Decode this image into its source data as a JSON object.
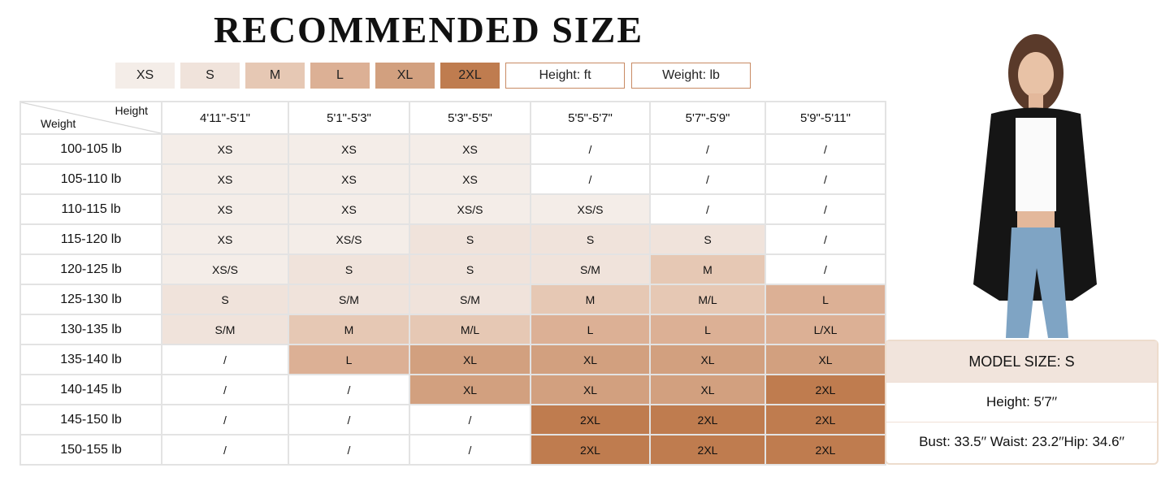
{
  "title": "RECOMMENDED SIZE",
  "legend": [
    {
      "label": "XS",
      "color": "#f4ede8"
    },
    {
      "label": "S",
      "color": "#f0e3db"
    },
    {
      "label": "M",
      "color": "#e6c8b4"
    },
    {
      "label": "L",
      "color": "#dcb095"
    },
    {
      "label": "XL",
      "color": "#d2a07f"
    },
    {
      "label": "2XL",
      "color": "#bf7c4f"
    }
  ],
  "units": {
    "height": "Height: ft",
    "weight": "Weight: lb"
  },
  "table": {
    "corner_height": "Height",
    "corner_weight": "Weight",
    "columns": [
      "4'11\"-5'1\"",
      "5'1\"-5'3\"",
      "5'3\"-5'5\"",
      "5'5\"-5'7\"",
      "5'7\"-5'9\"",
      "5'9\"-5'11\""
    ],
    "rows": [
      {
        "weight": "100-105 lb",
        "cells": [
          "XS",
          "XS",
          "XS",
          "/",
          "/",
          "/"
        ]
      },
      {
        "weight": "105-110 lb",
        "cells": [
          "XS",
          "XS",
          "XS",
          "/",
          "/",
          "/"
        ]
      },
      {
        "weight": "110-115 lb",
        "cells": [
          "XS",
          "XS",
          "XS/S",
          "XS/S",
          "/",
          "/"
        ]
      },
      {
        "weight": "115-120 lb",
        "cells": [
          "XS",
          "XS/S",
          "S",
          "S",
          "S",
          "/"
        ]
      },
      {
        "weight": "120-125 lb",
        "cells": [
          "XS/S",
          "S",
          "S",
          "S/M",
          "M",
          "/"
        ]
      },
      {
        "weight": "125-130 lb",
        "cells": [
          "S",
          "S/M",
          "S/M",
          "M",
          "M/L",
          "L"
        ]
      },
      {
        "weight": "130-135 lb",
        "cells": [
          "S/M",
          "M",
          "M/L",
          "L",
          "L",
          "L/XL"
        ]
      },
      {
        "weight": "135-140 lb",
        "cells": [
          "/",
          "L",
          "XL",
          "XL",
          "XL",
          "XL"
        ]
      },
      {
        "weight": "140-145 lb",
        "cells": [
          "/",
          "/",
          "XL",
          "XL",
          "XL",
          "2XL"
        ]
      },
      {
        "weight": "145-150 lb",
        "cells": [
          "/",
          "/",
          "/",
          "2XL",
          "2XL",
          "2XL"
        ]
      },
      {
        "weight": "150-155 lb",
        "cells": [
          "/",
          "/",
          "/",
          "2XL",
          "2XL",
          "2XL"
        ]
      }
    ]
  },
  "model": {
    "size": "MODEL SIZE: S",
    "height": "Height: 5′7′′",
    "measurements": "Bust: 33.5′′ Waist: 23.2′′Hip: 34.6′′"
  }
}
